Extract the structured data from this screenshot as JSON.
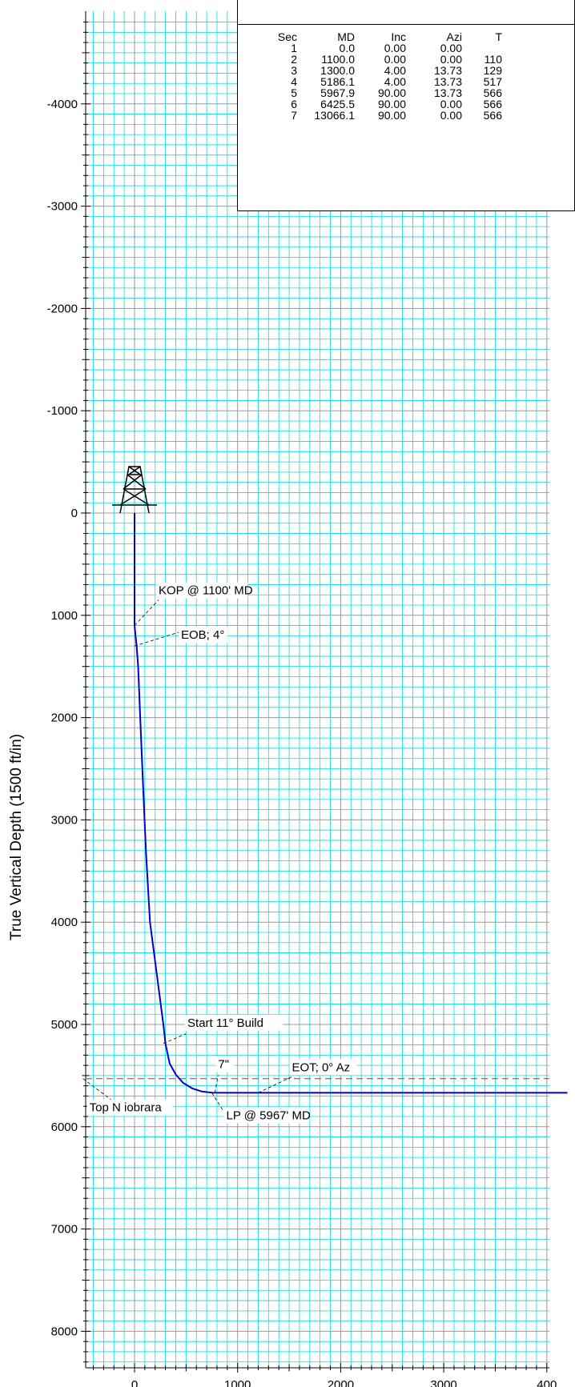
{
  "chart_data": {
    "type": "line",
    "ylabel": "True Vertical Depth (1500 ft/in)",
    "y_ticks": [
      "-4000",
      "-3000",
      "-2000",
      "-1000",
      "0",
      "1000",
      "2000",
      "3000",
      "4000",
      "5000",
      "6000",
      "7000",
      "8000"
    ],
    "x_ticks": [
      "0",
      "1000",
      "2000",
      "3000",
      "400"
    ],
    "ylim": [
      -4850,
      8400
    ],
    "xlim": [
      -500,
      4200
    ],
    "grid": true,
    "series": [
      {
        "x": [
          0,
          0,
          10,
          20,
          35,
          55,
          80,
          110,
          150,
          280,
          300,
          340,
          400,
          470,
          560,
          650,
          750,
          850,
          1100,
          2000,
          3000,
          4200
        ],
        "y": [
          0,
          1100,
          1200,
          1300,
          1500,
          2000,
          2600,
          3300,
          4000,
          5000,
          5186,
          5380,
          5490,
          5570,
          5625,
          5655,
          5667,
          5668,
          5668,
          5668,
          5668,
          5668
        ]
      }
    ],
    "formation_line": {
      "name": "Top Niobrara",
      "y": 5530
    },
    "annotations": [
      {
        "text": "KOP @ 1100' MD",
        "x": 0,
        "y": 1100
      },
      {
        "text": "EOB; 4°",
        "x": 0,
        "y": 1300
      },
      {
        "text": "Start 11° Build",
        "x": 280,
        "y": 5186
      },
      {
        "text": "EOT; 0° Az",
        "x": 1200,
        "y": 5668
      },
      {
        "text": "7\"",
        "x": 780,
        "y": 5668
      },
      {
        "text": "LP @ 5967' MD",
        "x": 750,
        "y": 5668
      },
      {
        "text": "Top N iobrara",
        "x": -500,
        "y": 5530
      }
    ]
  },
  "table": {
    "headers": [
      "Sec",
      "MD",
      "Inc",
      "Azi",
      "T"
    ],
    "rows": [
      [
        "1",
        "0.0",
        "0.00",
        "0.00",
        ""
      ],
      [
        "2",
        "1100.0",
        "0.00",
        "0.00",
        "110"
      ],
      [
        "3",
        "1300.0",
        "4.00",
        "13.73",
        "129"
      ],
      [
        "4",
        "5186.1",
        "4.00",
        "13.73",
        "517"
      ],
      [
        "5",
        "5967.9",
        "90.00",
        "13.73",
        "566"
      ],
      [
        "6",
        "6425.5",
        "90.00",
        "0.00",
        "566"
      ],
      [
        "7",
        "13066.1",
        "90.00",
        "0.00",
        "566"
      ]
    ]
  },
  "colors": {
    "grid_minor": "#00dede",
    "grid_major": "#999999",
    "trajectory": "#0000cc",
    "formation": "#555555"
  }
}
